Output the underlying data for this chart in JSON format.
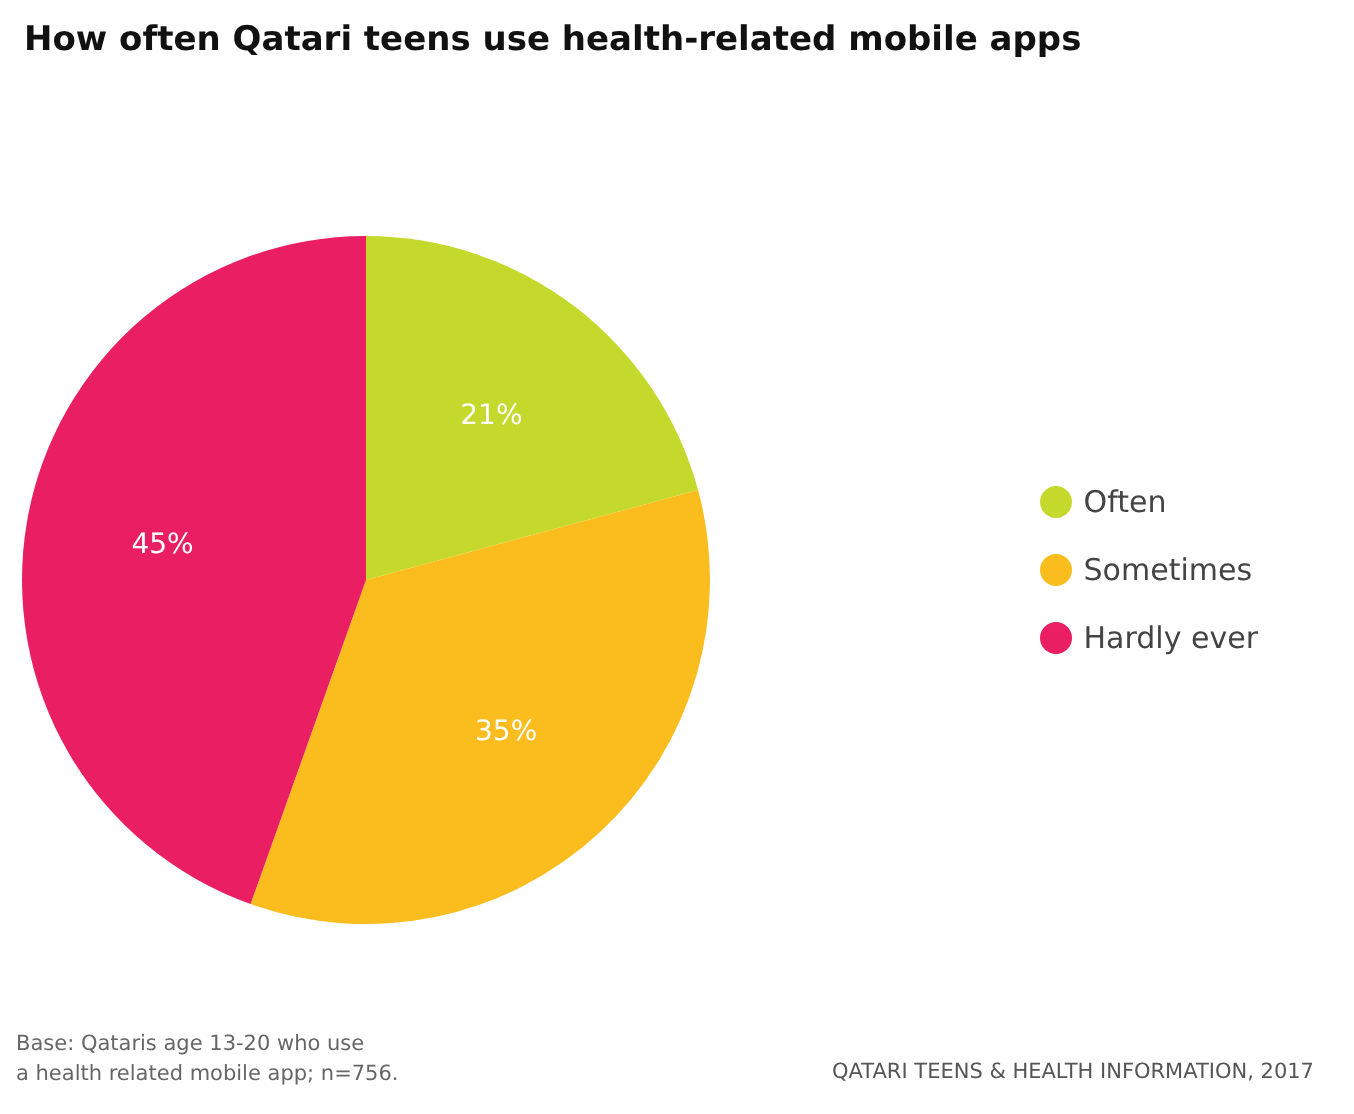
{
  "chart_data": {
    "type": "pie",
    "title": "How often Qatari teens use health-related mobile apps",
    "categories": [
      "Often",
      "Sometimes",
      "Hardly ever"
    ],
    "values": [
      21,
      35,
      45
    ],
    "colors": [
      "#c5d92d",
      "#fbbd1e",
      "#e91e63"
    ],
    "value_labels": [
      "21%",
      "35%",
      "45%"
    ],
    "legend": "right",
    "annotations": [
      "Base: Qataris age 13-20 who use\na health related mobile app; n=756.",
      "QATARI TEENS & HEALTH INFORMATION, 2017"
    ]
  }
}
